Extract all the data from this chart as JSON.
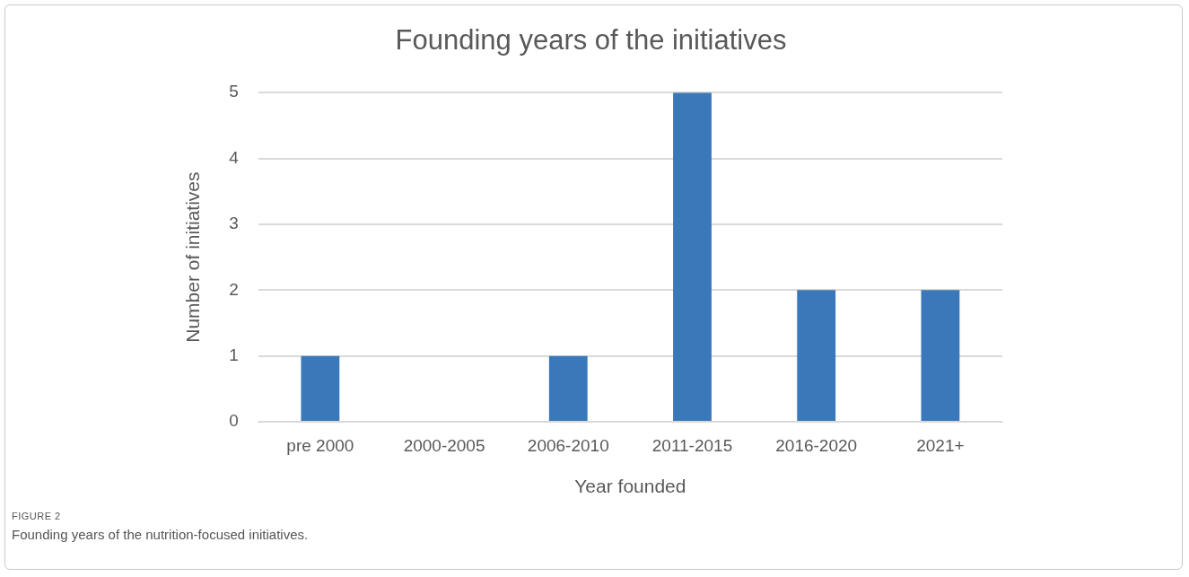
{
  "chart_data": {
    "type": "bar",
    "title": "Founding years of the initiatives",
    "xlabel": "Year founded",
    "ylabel": "Number of initiatives",
    "categories": [
      "pre 2000",
      "2000-2005",
      "2006-2010",
      "2011-2015",
      "2016-2020",
      "2021+"
    ],
    "values": [
      1,
      0,
      1,
      5,
      2,
      2
    ],
    "color": "#3b78b9",
    "ylim": [
      0,
      5
    ],
    "yticks": [
      0,
      1,
      2,
      3,
      4,
      5
    ],
    "grid": "y",
    "legend": false,
    "annotations": [
      "FIGURE 2",
      "Founding years of the nutrition-focused initiatives."
    ]
  }
}
